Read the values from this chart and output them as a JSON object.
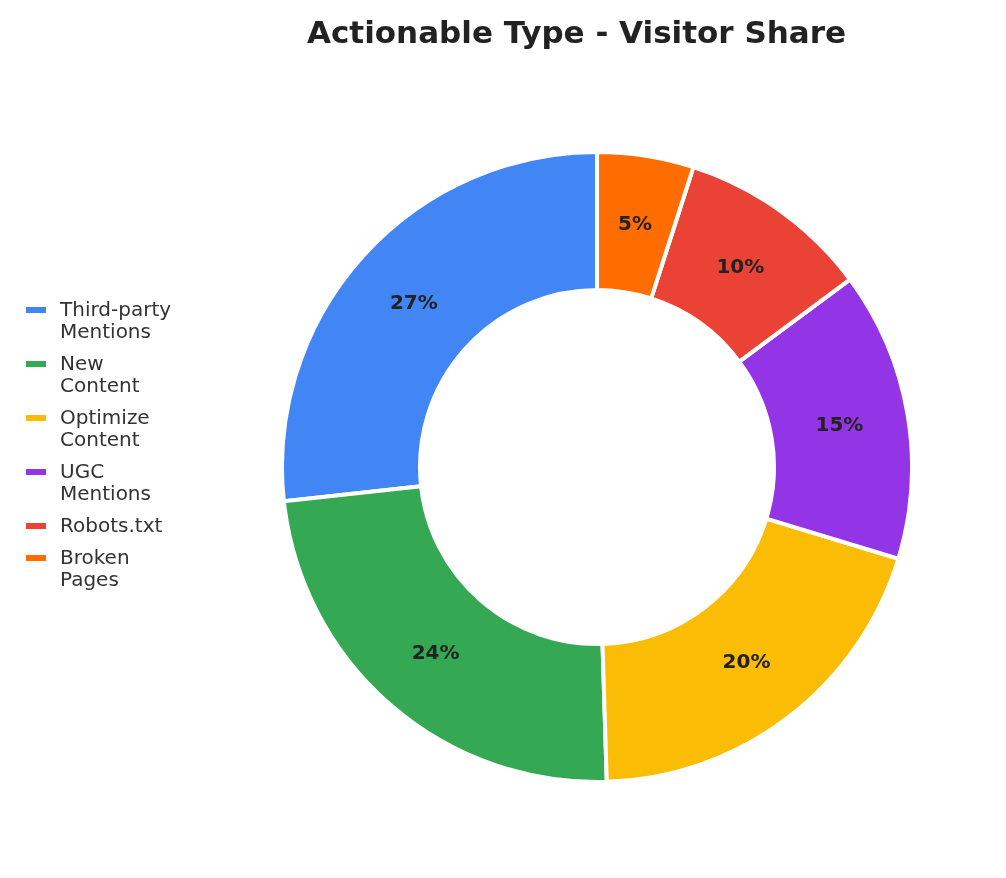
{
  "chart_data": {
    "type": "donut",
    "title": "Actionable Type - Visitor Share",
    "categories": [
      "Third-party Mentions",
      "New Content",
      "Optimize Content",
      "UGC Mentions",
      "Robots.txt",
      "Broken Pages"
    ],
    "values": [
      27,
      24,
      20,
      15,
      10,
      5
    ],
    "value_labels": [
      "27%",
      "24%",
      "20%",
      "15%",
      "10%",
      "5%"
    ],
    "colors": [
      "#4285f4",
      "#34a853",
      "#fbbc05",
      "#9334e6",
      "#ea4335",
      "#ff6d00"
    ],
    "legend": "left"
  }
}
